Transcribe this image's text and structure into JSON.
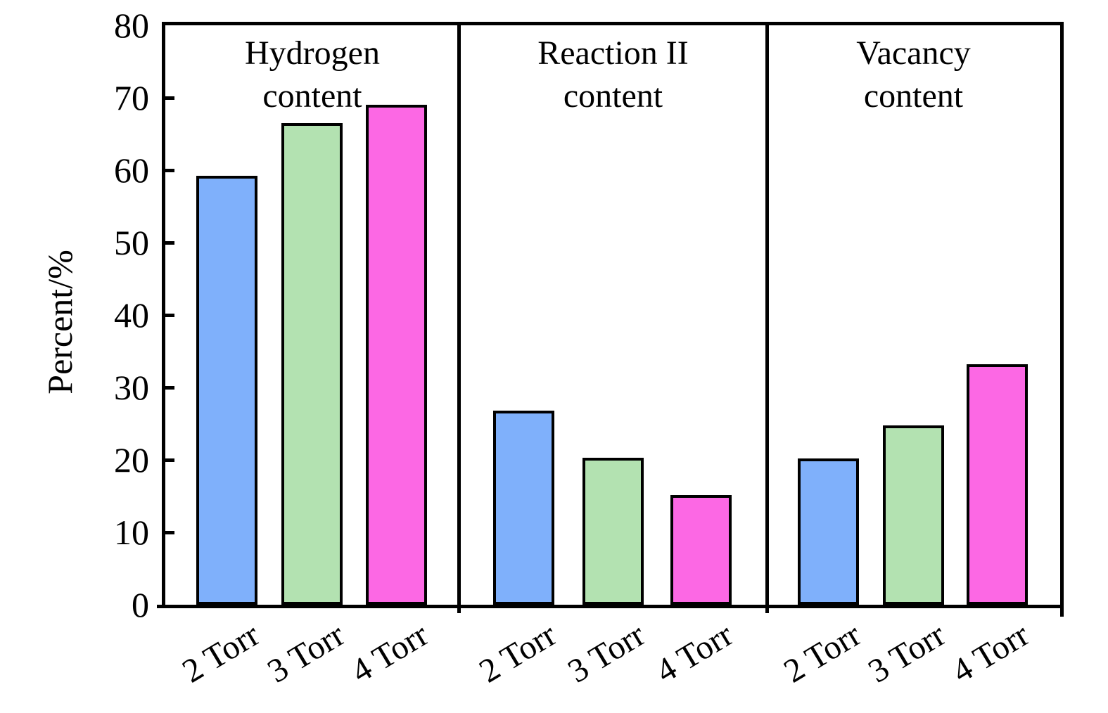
{
  "chart_data": {
    "type": "bar",
    "title": "",
    "ylabel": "Percent/%",
    "xlabel": "",
    "ylim": [
      0,
      80
    ],
    "yticks": [
      0,
      10,
      20,
      30,
      40,
      50,
      60,
      70,
      80
    ],
    "grid": false,
    "legend": false,
    "categories": [
      "2 Torr",
      "3 Torr",
      "4 Torr"
    ],
    "panels": [
      {
        "title_lines": [
          "Hydrogen",
          "content"
        ],
        "title": "Hydrogen content",
        "values": [
          59.2,
          66.5,
          69.0
        ]
      },
      {
        "title_lines": [
          "Reaction II",
          "content"
        ],
        "title": "Reaction II content",
        "values": [
          26.8,
          20.3,
          15.1
        ]
      },
      {
        "title_lines": [
          "Vacancy",
          "content"
        ],
        "title": "Vacancy content",
        "values": [
          20.2,
          24.8,
          33.2
        ]
      }
    ],
    "series_colors": [
      "#7fb0fb",
      "#b3e2b1",
      "#fc68e4"
    ],
    "edge_color": "#000000",
    "background_color": "#ffffff"
  }
}
